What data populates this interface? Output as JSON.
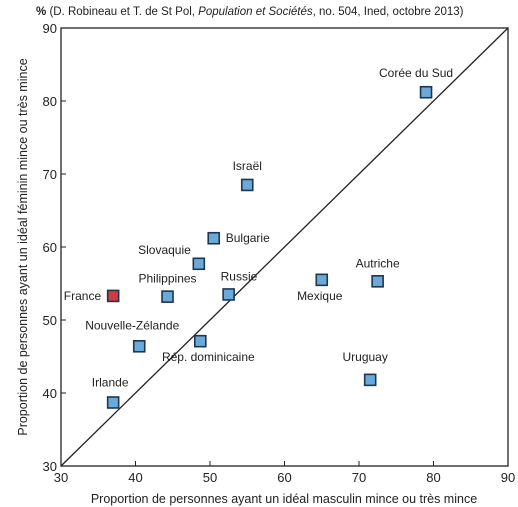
{
  "source": {
    "unit": "%",
    "open": "(D. Robineau et T. de St Pol, ",
    "journal": "Population et Sociétés",
    "rest": ", no. 504, Ined, octobre 2013)"
  },
  "chart_data": {
    "type": "scatter",
    "xlabel": "Proportion de personnes ayant un idéal masculin mince ou très mince",
    "ylabel": "Proportion de personnes ayant un idéal féminin mince ou très mince",
    "xlim": [
      30,
      90
    ],
    "ylim": [
      30,
      90
    ],
    "xticks": [
      "30",
      "40",
      "50",
      "60",
      "70",
      "80",
      "90"
    ],
    "yticks": [
      "30",
      "40",
      "50",
      "60",
      "70",
      "80",
      "90"
    ],
    "reference_line": "y = x",
    "grid": false,
    "colors": {
      "default_marker": "#6aaad8",
      "highlight_marker": "#d23a44",
      "marker_edge": "#1f3550",
      "line": "#222222"
    },
    "points": [
      {
        "label": "Corée du Sud",
        "x": 79,
        "y": 81.2
      },
      {
        "label": "Israël",
        "x": 55,
        "y": 68.5
      },
      {
        "label": "Bulgarie",
        "x": 50.5,
        "y": 61.2
      },
      {
        "label": "Slovaquie",
        "x": 48.5,
        "y": 57.7
      },
      {
        "label": "Philippines",
        "x": 44.3,
        "y": 53.2
      },
      {
        "label": "Russie",
        "x": 52.5,
        "y": 53.5
      },
      {
        "label": "France",
        "x": 37,
        "y": 53.3,
        "highlight": true
      },
      {
        "label": "Mexique",
        "x": 65,
        "y": 55.5
      },
      {
        "label": "Autriche",
        "x": 72.5,
        "y": 55.3
      },
      {
        "label": "Nouvelle-Zélande",
        "x": 40.5,
        "y": 46.4
      },
      {
        "label": "Rép. dominicaine",
        "x": 48.7,
        "y": 47.1
      },
      {
        "label": "Uruguay",
        "x": 71.5,
        "y": 41.8
      },
      {
        "label": "Irlande",
        "x": 37,
        "y": 38.7
      }
    ]
  }
}
